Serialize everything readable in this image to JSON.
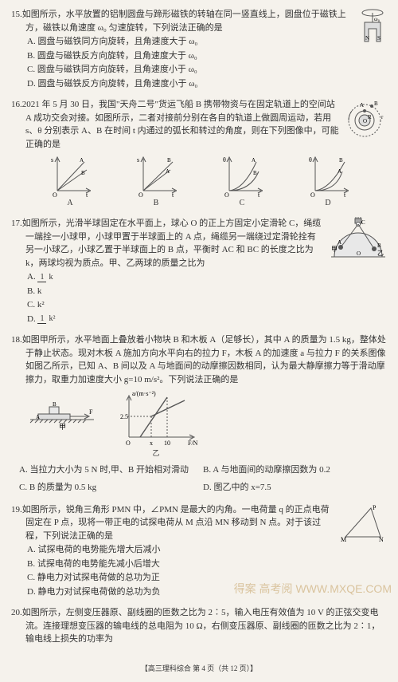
{
  "q15": {
    "num": "15.",
    "text": "如图所示，水平放置的铝制圆盘与蹄形磁铁的转轴在同一竖直线上，圆盘位于磁铁上方，磁铁以角速度 ω₀ 匀速旋转，下列说法正确的是",
    "a": "A. 圆盘与磁铁同方向旋转，且角速度大于 ω₀",
    "b": "B. 圆盘与磁铁反方向旋转，且角速度大于 ω₀",
    "c": "C. 圆盘与磁铁同方向旋转，且角速度小于 ω₀",
    "d": "D. 圆盘与磁铁反方向旋转，且角速度小于 ω₀",
    "fig": {
      "bg": "#ffffff",
      "stroke": "#555",
      "n": "N",
      "s": "S",
      "w": "ω₀"
    }
  },
  "q16": {
    "num": "16.",
    "text": "2021 年 5 月 30 日，我国\"天舟二号\"货运飞船 B 携带物资与在固定轨道上的空间站 A 成功交会对接。如图所示，二者对接前分别在各自的轨道上做圆周运动，若用 s、θ 分别表示 A、B 在时间 t 内通过的弧长和转过的角度，则在下列图像中，可能正确的是",
    "charts": {
      "labels": [
        "A",
        "B",
        "C",
        "D"
      ],
      "yaxis": [
        "s",
        "s",
        "θ",
        "θ"
      ],
      "xaxis": "t",
      "size": 52,
      "stroke": "#555",
      "fill": "#ffffff"
    },
    "orbit": {
      "bg": "#ffffff",
      "stroke": "#555",
      "o": "O",
      "a": "A",
      "b": "B",
      "r": "R",
      "rp": "r"
    }
  },
  "q17": {
    "num": "17.",
    "text": "如图所示，光滑半球固定在水平面上，球心 O 的正上方固定小定滑轮 C，绳缆一端拴一小球甲，小球甲置于半球面上的 A 点，绳缆另一端绕过定滑轮拴有另一小球乙，小球乙置于半球面上的 B 点，平衡时 AC 和 BC 的长度之比为 k，两球均视为质点。甲、乙两球的质量之比为",
    "a_num": "A.",
    "a_frac_n": "1",
    "a_frac_d": "k",
    "b": "B. k",
    "c": "C. k²",
    "d_num": "D.",
    "d_frac_n": "1",
    "d_frac_d": "k²",
    "fig": {
      "bg": "#ffffff",
      "stroke": "#555",
      "o": "O",
      "c": "C",
      "a": "A",
      "b": "B",
      "jia": "甲",
      "yi": "乙"
    }
  },
  "q18": {
    "num": "18.",
    "text": "如图甲所示，水平地面上叠放着小物块 B 和木板 A（足够长），其中 A 的质量为 1.5 kg，整体处于静止状态。现对木板 A 施加方向水平向右的拉力 F，木板 A 的加速度 a 与拉力 F 的关系图像如图乙所示，已知 A、B 间以及 A 与地面间的动摩擦因数相同，认为最大静摩擦力等于滑动摩擦力，取重力加速度大小 g=10 m/s²。下列说法正确的是",
    "a": "A. 当拉力大小为 5 N 时,甲、B 开始相对滑动",
    "b": "B. A 与地面间的动摩擦因数为 0.2",
    "c": "C. B 的质量为 0.5 kg",
    "d": "D. 图乙中的 x=7.5",
    "jia": "甲",
    "yi": "乙",
    "graph": {
      "ylabel": "a/(m·s⁻²)",
      "xlabel": "F/N",
      "ytick": "2.5",
      "xticks": [
        "x",
        "10"
      ],
      "w": 90,
      "h": 64,
      "stroke": "#555",
      "bg": "#ffffff"
    }
  },
  "q19": {
    "num": "19.",
    "text": "如图所示，锐角三角形 PMN 中，∠PMN 是最大的内角。一电荷量 q 的正点电荷固定在 P 点，现将一带正电的试探电荷从 M 点沿 MN 移动到 N 点。对于该过程，下列说法正确的是",
    "a": "A. 试探电荷的电势能先增大后减小",
    "b": "B. 试探电荷的电势能先减小后增大",
    "c": "C. 静电力对试探电荷做的总功为正",
    "d": "D. 静电力对试探电荷做的总功为负",
    "fig": {
      "p": "P",
      "m": "M",
      "n": "N",
      "stroke": "#555"
    }
  },
  "q20": {
    "num": "20.",
    "text": "如图所示，左侧变压器原、副线圈的匝数之比为 2∶5，输入电压有效值为 10 V 的正弦交变电流。连接理想变压器的输电线的总电阻为 10 Ω，右侧变压器原、副线圈的匝数之比为 2∶1，输电线上损失的功率为"
  },
  "footer": "【高三理科综合 第 4 页（共 12 页）】",
  "stamp": "得案 高考阅\nWWW.MXQE.COM"
}
